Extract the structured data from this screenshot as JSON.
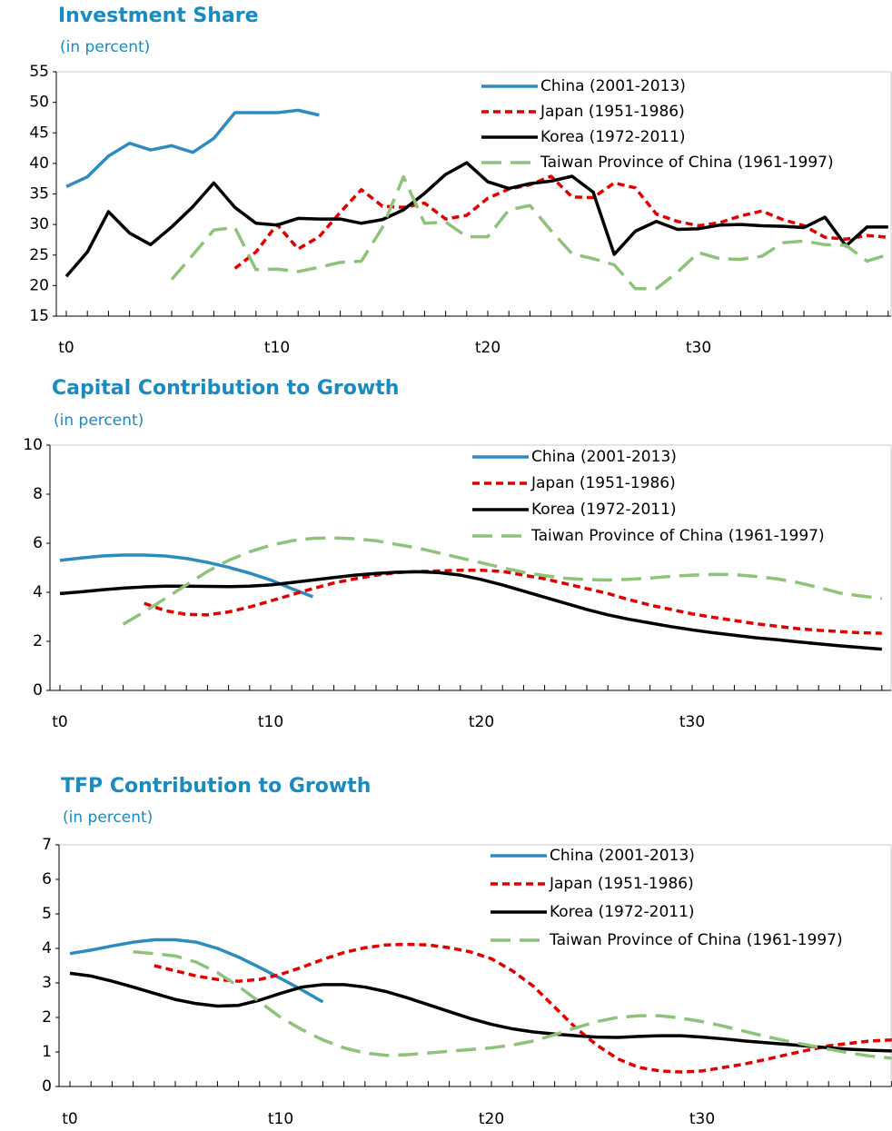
{
  "chart_data": [
    {
      "type": "line",
      "title": "Investment Share",
      "subtitle": "(in percent)",
      "categories": [
        "t0",
        null,
        null,
        null,
        null,
        null,
        null,
        null,
        null,
        null,
        "t10",
        null,
        null,
        null,
        null,
        null,
        null,
        null,
        null,
        null,
        "t20",
        null,
        null,
        null,
        null,
        null,
        null,
        null,
        null,
        null,
        "t30",
        null,
        null,
        null,
        null,
        null,
        null,
        null,
        null,
        null
      ],
      "ylim": [
        15,
        55
      ],
      "yticks": [
        15,
        20,
        25,
        30,
        35,
        40,
        45,
        50,
        55
      ],
      "series": [
        {
          "name": "China (2001-2013)",
          "color": "#2e8bc0",
          "values": [
            36.2,
            37.8,
            41.2,
            43.3,
            42.2,
            42.9,
            41.8,
            44.1,
            48.3,
            48.3,
            48.3,
            48.7,
            47.9,
            null,
            null,
            null,
            null,
            null,
            null,
            null,
            null,
            null,
            null,
            null,
            null,
            null,
            null,
            null,
            null,
            null,
            null,
            null,
            null,
            null,
            null,
            null,
            null,
            null,
            null,
            null
          ]
        },
        {
          "name": "Japan (1951-1986)",
          "color": "#e00000",
          "values": [
            null,
            null,
            null,
            null,
            null,
            null,
            null,
            null,
            22.8,
            25.5,
            30,
            26,
            28,
            32,
            35.7,
            33,
            32.8,
            33.5,
            30.9,
            31.5,
            34.3,
            35.8,
            36.5,
            37.9,
            34.5,
            34.4,
            36.8,
            36,
            31.7,
            30.5,
            29.8,
            30.3,
            31.4,
            32.2,
            30.8,
            29.8,
            27.9,
            27.6,
            28.2,
            27.9
          ]
        },
        {
          "name": "Korea (1972-2011)",
          "color": "#000000",
          "values": [
            21.5,
            25.5,
            32.1,
            28.6,
            26.7,
            29.6,
            32.9,
            36.8,
            32.8,
            30.2,
            29.9,
            31,
            30.9,
            30.9,
            30.2,
            30.8,
            32.4,
            35.1,
            38.2,
            40.1,
            37,
            35.9,
            36.7,
            37.1,
            37.9,
            35.3,
            25.1,
            28.9,
            30.5,
            29.2,
            29.3,
            29.9,
            30,
            29.8,
            29.7,
            29.5,
            31.2,
            26.5,
            29.6,
            29.6
          ]
        },
        {
          "name": "Taiwan Province of China (1961-1997)",
          "color": "#8fc27a",
          "values": [
            null,
            null,
            null,
            null,
            null,
            21,
            25,
            29.1,
            29.5,
            22.6,
            22.7,
            22.3,
            23,
            23.8,
            24,
            29.5,
            37.8,
            30.2,
            30.4,
            28,
            28,
            32.4,
            33.1,
            29,
            25.2,
            24.4,
            23.4,
            19.5,
            19.5,
            22.2,
            25.4,
            24.4,
            24.3,
            24.8,
            27,
            27.3,
            26.7,
            26.6,
            24,
            25.1
          ]
        }
      ]
    },
    {
      "type": "line",
      "title": "Capital Contribution to Growth",
      "subtitle": "(in percent)",
      "categories": [
        "t0",
        null,
        null,
        null,
        null,
        null,
        null,
        null,
        null,
        null,
        "t10",
        null,
        null,
        null,
        null,
        null,
        null,
        null,
        null,
        null,
        "t20",
        null,
        null,
        null,
        null,
        null,
        null,
        null,
        null,
        null,
        "t30",
        null,
        null,
        null,
        null,
        null,
        null,
        null,
        null,
        null
      ],
      "ylim": [
        0,
        10
      ],
      "yticks": [
        0,
        2,
        4,
        6,
        8,
        10
      ],
      "series": [
        {
          "name": "China (2001-2013)",
          "color": "#2e8bc0",
          "values": [
            5.3,
            5.4,
            5.48,
            5.52,
            5.52,
            5.48,
            5.38,
            5.22,
            5.02,
            4.78,
            4.5,
            4.15,
            3.82,
            null,
            null,
            null,
            null,
            null,
            null,
            null,
            null,
            null,
            null,
            null,
            null,
            null,
            null,
            null,
            null,
            null,
            null,
            null,
            null,
            null,
            null,
            null,
            null,
            null,
            null,
            null
          ]
        },
        {
          "name": "Japan (1951-1986)",
          "color": "#e00000",
          "values": [
            null,
            null,
            null,
            null,
            3.55,
            3.25,
            3.1,
            3.08,
            3.2,
            3.4,
            3.65,
            3.9,
            4.15,
            4.38,
            4.55,
            4.7,
            4.8,
            4.85,
            4.87,
            4.9,
            4.9,
            4.85,
            4.7,
            4.55,
            4.35,
            4.15,
            3.95,
            3.7,
            3.48,
            3.3,
            3.12,
            2.98,
            2.85,
            2.72,
            2.62,
            2.52,
            2.45,
            2.4,
            2.35,
            2.33
          ]
        },
        {
          "name": "Korea (1972-2011)",
          "color": "#000000",
          "values": [
            3.95,
            4.02,
            4.1,
            4.17,
            4.22,
            4.25,
            4.25,
            4.24,
            4.23,
            4.25,
            4.3,
            4.4,
            4.5,
            4.6,
            4.7,
            4.77,
            4.82,
            4.84,
            4.8,
            4.7,
            4.52,
            4.3,
            4.05,
            3.8,
            3.55,
            3.3,
            3.08,
            2.9,
            2.75,
            2.6,
            2.47,
            2.35,
            2.25,
            2.15,
            2.07,
            1.98,
            1.9,
            1.82,
            1.75,
            1.68
          ]
        },
        {
          "name": "Taiwan Province of China (1961-1997)",
          "color": "#8fc27a",
          "values": [
            null,
            null,
            null,
            2.7,
            3.2,
            3.75,
            4.3,
            4.85,
            5.3,
            5.65,
            5.92,
            6.1,
            6.2,
            6.22,
            6.18,
            6.1,
            5.95,
            5.8,
            5.6,
            5.4,
            5.2,
            5.0,
            4.82,
            4.68,
            4.57,
            4.52,
            4.5,
            4.53,
            4.58,
            4.65,
            4.7,
            4.73,
            4.72,
            4.65,
            4.55,
            4.4,
            4.2,
            3.97,
            3.85,
            3.75
          ]
        }
      ]
    },
    {
      "type": "line",
      "title": "TFP Contribution to Growth",
      "subtitle": "(in percent)",
      "categories": [
        "t0",
        null,
        null,
        null,
        null,
        null,
        null,
        null,
        null,
        null,
        "t10",
        null,
        null,
        null,
        null,
        null,
        null,
        null,
        null,
        null,
        "t20",
        null,
        null,
        null,
        null,
        null,
        null,
        null,
        null,
        null,
        "t30",
        null,
        null,
        null,
        null,
        null,
        null,
        null,
        null,
        null
      ],
      "ylim": [
        0,
        7
      ],
      "yticks": [
        0,
        1,
        2,
        3,
        4,
        5,
        6,
        7
      ],
      "series": [
        {
          "name": "China (2001-2013)",
          "color": "#2e8bc0",
          "values": [
            3.85,
            3.95,
            4.07,
            4.18,
            4.25,
            4.25,
            4.18,
            4.0,
            3.75,
            3.45,
            3.13,
            2.8,
            2.45,
            null,
            null,
            null,
            null,
            null,
            null,
            null,
            null,
            null,
            null,
            null,
            null,
            null,
            null,
            null,
            null,
            null,
            null,
            null,
            null,
            null,
            null,
            null,
            null,
            null,
            null,
            null
          ]
        },
        {
          "name": "Japan (1951-1986)",
          "color": "#e00000",
          "values": [
            null,
            null,
            null,
            null,
            3.5,
            3.35,
            3.2,
            3.1,
            3.05,
            3.1,
            3.25,
            3.45,
            3.68,
            3.88,
            4.02,
            4.1,
            4.12,
            4.1,
            4.02,
            3.9,
            3.7,
            3.35,
            2.9,
            2.3,
            1.7,
            1.2,
            0.8,
            0.55,
            0.45,
            0.42,
            0.45,
            0.55,
            0.65,
            0.78,
            0.92,
            1.05,
            1.18,
            1.25,
            1.32,
            1.35
          ]
        },
        {
          "name": "Korea (1972-2011)",
          "color": "#000000",
          "values": [
            3.28,
            3.2,
            3.05,
            2.88,
            2.7,
            2.52,
            2.4,
            2.33,
            2.35,
            2.5,
            2.7,
            2.88,
            2.95,
            2.95,
            2.88,
            2.75,
            2.57,
            2.37,
            2.17,
            1.97,
            1.8,
            1.67,
            1.58,
            1.52,
            1.47,
            1.43,
            1.42,
            1.45,
            1.47,
            1.47,
            1.43,
            1.38,
            1.32,
            1.27,
            1.22,
            1.17,
            1.12,
            1.08,
            1.05,
            1.03
          ]
        },
        {
          "name": "Taiwan Province of China (1961-1997)",
          "color": "#8fc27a",
          "values": [
            null,
            null,
            null,
            3.9,
            3.85,
            3.78,
            3.6,
            3.3,
            2.9,
            2.45,
            2.0,
            1.65,
            1.35,
            1.12,
            0.97,
            0.9,
            0.92,
            0.97,
            1.02,
            1.07,
            1.12,
            1.2,
            1.32,
            1.5,
            1.7,
            1.88,
            2.0,
            2.05,
            2.05,
            1.98,
            1.88,
            1.75,
            1.6,
            1.45,
            1.32,
            1.2,
            1.08,
            0.97,
            0.88,
            0.82
          ]
        }
      ]
    }
  ]
}
